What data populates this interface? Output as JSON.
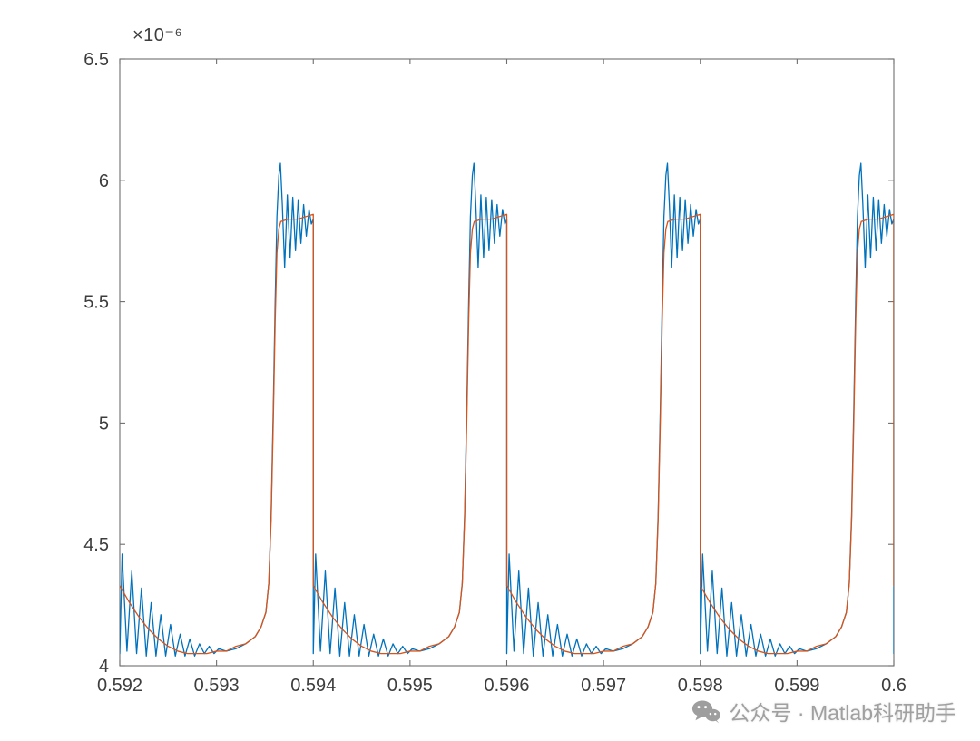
{
  "figure": {
    "background": "#ffffff",
    "watermark": {
      "icon": "wechat-icon",
      "text": "公众号 · Matlab科研助手",
      "color": "#a0a0a0"
    }
  },
  "chart_data": {
    "type": "line",
    "title": "",
    "xlabel": "",
    "ylabel": "",
    "y_axis_exponent_label": "×10⁻⁶",
    "grid": false,
    "legend": null,
    "axis_color": "#6e6e6e",
    "tick_label_color": "#3d3d3d",
    "xlim": [
      0.592,
      0.6
    ],
    "y_scale_factor": 1e-06,
    "ylim_scaled": [
      4,
      6.5
    ],
    "x_ticks": [
      0.592,
      0.593,
      0.594,
      0.595,
      0.596,
      0.597,
      0.598,
      0.599,
      0.6
    ],
    "x_tick_labels": [
      "0.592",
      "0.593",
      "0.594",
      "0.595",
      "0.596",
      "0.597",
      "0.598",
      "0.599",
      "0.6"
    ],
    "y_ticks_scaled": [
      4,
      4.5,
      5,
      5.5,
      6,
      6.5
    ],
    "y_tick_labels": [
      "4",
      "4.5",
      "5",
      "5.5",
      "6",
      "6.5"
    ],
    "periodicity_note": "Both series repeat with period 0.002 s; drops occur at x = 0.592, 0.594, 0.596, 0.598, 0.6; pulse peak near x = 0.5937 + k*0.002",
    "series": [
      {
        "name": "blue-line",
        "color": "#0072BD",
        "line_width": 1.3,
        "x_start": 0.592,
        "period": 0.002,
        "num_periods": 4,
        "period_profile": [
          [
            0.0,
            4.05
          ],
          [
            0.012,
            4.46
          ],
          [
            0.037,
            4.06
          ],
          [
            0.062,
            4.39
          ],
          [
            0.087,
            4.05
          ],
          [
            0.112,
            4.32
          ],
          [
            0.137,
            4.04
          ],
          [
            0.162,
            4.26
          ],
          [
            0.187,
            4.04
          ],
          [
            0.212,
            4.21
          ],
          [
            0.237,
            4.04
          ],
          [
            0.262,
            4.17
          ],
          [
            0.287,
            4.04
          ],
          [
            0.312,
            4.13
          ],
          [
            0.337,
            4.04
          ],
          [
            0.362,
            4.11
          ],
          [
            0.387,
            4.04
          ],
          [
            0.412,
            4.09
          ],
          [
            0.437,
            4.05
          ],
          [
            0.462,
            4.08
          ],
          [
            0.487,
            4.05
          ],
          [
            0.512,
            4.07
          ],
          [
            0.55,
            4.06
          ],
          [
            0.6,
            4.07
          ],
          [
            0.65,
            4.09
          ],
          [
            0.7,
            4.12
          ],
          [
            0.73,
            4.16
          ],
          [
            0.755,
            4.22
          ],
          [
            0.77,
            4.34
          ],
          [
            0.782,
            4.62
          ],
          [
            0.793,
            5.05
          ],
          [
            0.803,
            5.5
          ],
          [
            0.812,
            5.85
          ],
          [
            0.822,
            6.02
          ],
          [
            0.83,
            6.07
          ],
          [
            0.84,
            5.9
          ],
          [
            0.852,
            5.64
          ],
          [
            0.866,
            5.94
          ],
          [
            0.88,
            5.68
          ],
          [
            0.894,
            5.93
          ],
          [
            0.908,
            5.71
          ],
          [
            0.922,
            5.92
          ],
          [
            0.936,
            5.74
          ],
          [
            0.95,
            5.9
          ],
          [
            0.964,
            5.77
          ],
          [
            0.978,
            5.88
          ],
          [
            0.99,
            5.82
          ],
          [
            1.0,
            5.84
          ]
        ]
      },
      {
        "name": "orange-line",
        "color": "#D95319",
        "line_width": 1.3,
        "x_start": 0.592,
        "period": 0.002,
        "num_periods": 4,
        "period_profile": [
          [
            0.0,
            4.33
          ],
          [
            0.05,
            4.26
          ],
          [
            0.1,
            4.2
          ],
          [
            0.15,
            4.15
          ],
          [
            0.2,
            4.11
          ],
          [
            0.25,
            4.08
          ],
          [
            0.3,
            4.06
          ],
          [
            0.35,
            4.05
          ],
          [
            0.4,
            4.05
          ],
          [
            0.45,
            4.05
          ],
          [
            0.5,
            4.06
          ],
          [
            0.55,
            4.06
          ],
          [
            0.6,
            4.08
          ],
          [
            0.65,
            4.09
          ],
          [
            0.7,
            4.12
          ],
          [
            0.73,
            4.16
          ],
          [
            0.755,
            4.22
          ],
          [
            0.77,
            4.34
          ],
          [
            0.782,
            4.6
          ],
          [
            0.793,
            5.0
          ],
          [
            0.803,
            5.42
          ],
          [
            0.812,
            5.7
          ],
          [
            0.822,
            5.8
          ],
          [
            0.832,
            5.83
          ],
          [
            0.87,
            5.84
          ],
          [
            0.92,
            5.84
          ],
          [
            0.96,
            5.85
          ],
          [
            1.0,
            5.86
          ]
        ]
      }
    ]
  }
}
